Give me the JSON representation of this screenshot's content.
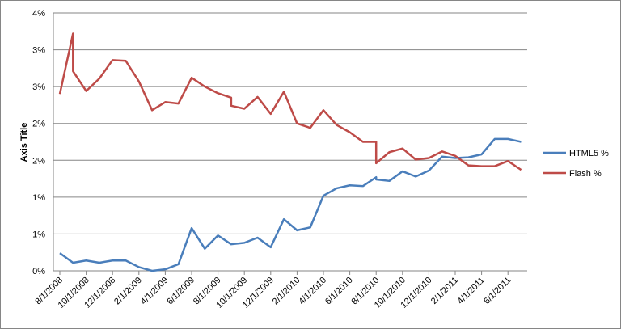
{
  "chart_data": {
    "type": "line",
    "y_axis_label": "Axis Title",
    "x": [
      "8/1/2008",
      "9/1/2008",
      "9/1/2008",
      "10/1/2008",
      "11/1/2008",
      "12/1/2008",
      "1/1/2009",
      "2/1/2009",
      "3/1/2009",
      "4/1/2009",
      "5/1/2009",
      "6/1/2009",
      "7/1/2009",
      "8/1/2009",
      "9/1/2009",
      "9/1/2009",
      "10/1/2009",
      "11/1/2009",
      "12/1/2009",
      "1/1/2010",
      "2/1/2010",
      "3/1/2010",
      "4/1/2010",
      "5/1/2010",
      "6/1/2010",
      "7/1/2010",
      "8/1/2010",
      "8/1/2010",
      "9/1/2010",
      "10/1/2010",
      "11/1/2010",
      "12/1/2010",
      "1/1/2011",
      "2/1/2011",
      "3/1/2011",
      "4/1/2011",
      "5/1/2011",
      "6/1/2011",
      "7/1/2011"
    ],
    "series": [
      {
        "name": "HTML5 %",
        "color": "#4a7ebb",
        "values": [
          0.24,
          0.11,
          0.11,
          0.14,
          0.11,
          0.14,
          0.14,
          0.05,
          0.0,
          0.02,
          0.09,
          0.58,
          0.3,
          0.48,
          0.36,
          0.36,
          0.38,
          0.45,
          0.32,
          0.7,
          0.55,
          0.59,
          1.02,
          1.12,
          1.16,
          1.15,
          1.27,
          1.24,
          1.22,
          1.35,
          1.28,
          1.36,
          1.55,
          1.53,
          1.54,
          1.58,
          1.79,
          1.79,
          1.75
        ]
      },
      {
        "name": "Flash %",
        "color": "#be4b48",
        "values": [
          2.4,
          3.22,
          2.71,
          2.44,
          2.61,
          2.86,
          2.85,
          2.57,
          2.18,
          2.29,
          2.27,
          2.62,
          2.5,
          2.41,
          2.35,
          2.24,
          2.2,
          2.36,
          2.13,
          2.43,
          2.0,
          1.94,
          2.18,
          1.98,
          1.88,
          1.75,
          1.75,
          1.46,
          1.61,
          1.66,
          1.51,
          1.53,
          1.62,
          1.56,
          1.43,
          1.42,
          1.42,
          1.49,
          1.37
        ]
      }
    ],
    "xticks": [
      "8/1/2008",
      "10/1/2008",
      "12/1/2008",
      "2/1/2009",
      "4/1/2009",
      "6/1/2009",
      "8/1/2009",
      "10/1/2009",
      "12/1/2009",
      "2/1/2010",
      "4/1/2010",
      "6/1/2010",
      "8/1/2010",
      "10/1/2010",
      "12/1/2010",
      "2/1/2011",
      "4/1/2011",
      "6/1/2011"
    ],
    "ylim": [
      0,
      3.5
    ],
    "yticks": [
      {
        "value": 0,
        "label": "0%"
      },
      {
        "value": 0.5,
        "label": "1%"
      },
      {
        "value": 1,
        "label": "1%"
      },
      {
        "value": 1.5,
        "label": "2%"
      },
      {
        "value": 2,
        "label": "2%"
      },
      {
        "value": 2.5,
        "label": "3%"
      },
      {
        "value": 3,
        "label": "3%"
      },
      {
        "value": 3.5,
        "label": "4%"
      }
    ],
    "grid": true,
    "legend": "right"
  }
}
